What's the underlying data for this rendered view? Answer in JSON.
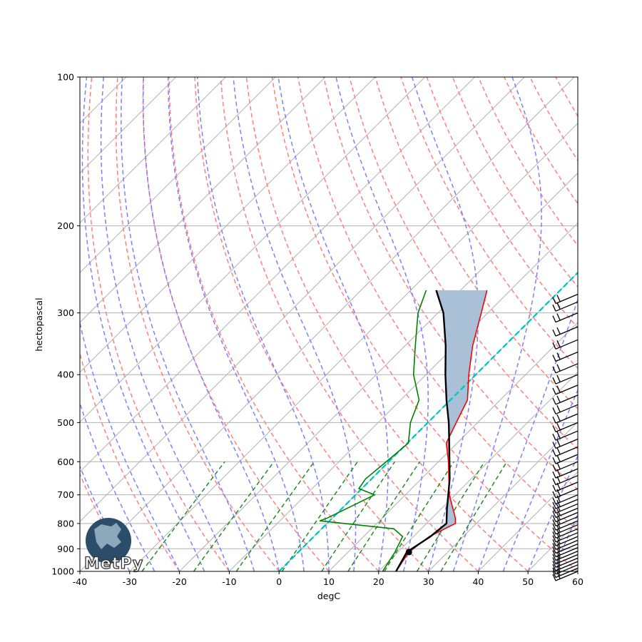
{
  "colors": {
    "temperature": "#ff0000",
    "dewpoint": "#008000",
    "parcel": "#000000",
    "cape": "#e8a2a6",
    "cin": "#a9c0d6",
    "dry_adiabat": "#ff7f7f",
    "moist_adiabat": "#7f7fff",
    "mixing_ratio": "#228b22",
    "zero_isotherm": "#00c0c0",
    "isotherm": "#b0b0b0",
    "grid": "#b0b0b0"
  },
  "logo": {
    "text": "MetPy",
    "icon": "globe-icon"
  },
  "chart_data": {
    "type": "line",
    "title": "",
    "xlabel": "degC",
    "ylabel": "hectopascal",
    "xlim": [
      -40,
      60
    ],
    "ylim": [
      1000,
      100
    ],
    "yscale": "log",
    "grid": true,
    "skew": "isotherms slant right (Skew-T log-P)",
    "x_ticks": [
      "-40",
      "-30",
      "-20",
      "-10",
      "0",
      "10",
      "20",
      "30",
      "40",
      "50",
      "60"
    ],
    "y_ticks": [
      "100",
      "200",
      "300",
      "400",
      "500",
      "600",
      "700",
      "800",
      "900",
      "1000"
    ],
    "series": [
      {
        "role": "temperature",
        "points": [
          [
            1000,
            23.5
          ],
          [
            914,
            22.2
          ],
          [
            900,
            22.4
          ],
          [
            850,
            23.2
          ],
          [
            800,
            25.8
          ],
          [
            780,
            24.7
          ],
          [
            700,
            18.8
          ],
          [
            600,
            12.0
          ],
          [
            550,
            7.8
          ],
          [
            500,
            5.7
          ],
          [
            450,
            3.4
          ],
          [
            400,
            -1.4
          ],
          [
            350,
            -6.4
          ],
          [
            300,
            -11.3
          ],
          [
            270,
            -14.7
          ]
        ]
      },
      {
        "role": "dewpoint",
        "points": [
          [
            1000,
            20.8
          ],
          [
            914,
            19.4
          ],
          [
            850,
            17.8
          ],
          [
            820,
            14.5
          ],
          [
            790,
            -2.0
          ],
          [
            780,
            -1.0
          ],
          [
            700,
            3.8
          ],
          [
            680,
            -0.6
          ],
          [
            650,
            -1.2
          ],
          [
            600,
            -0.5
          ],
          [
            550,
            0.2
          ],
          [
            500,
            -3.5
          ],
          [
            450,
            -6.3
          ],
          [
            400,
            -12.5
          ],
          [
            350,
            -17.9
          ],
          [
            300,
            -24.0
          ],
          [
            270,
            -26.9
          ]
        ]
      },
      {
        "role": "parcel",
        "points": [
          [
            1000,
            23.5
          ],
          [
            914,
            21.8
          ],
          [
            850,
            23.4
          ],
          [
            800,
            24.0
          ],
          [
            750,
            21.3
          ],
          [
            700,
            18.6
          ],
          [
            650,
            15.7
          ],
          [
            600,
            12.2
          ],
          [
            550,
            8.4
          ],
          [
            500,
            4.2
          ],
          [
            450,
            -0.8
          ],
          [
            400,
            -6.1
          ],
          [
            350,
            -11.8
          ],
          [
            300,
            -18.9
          ],
          [
            270,
            -24.9
          ]
        ]
      }
    ],
    "lcl": {
      "pressure": 914,
      "temperature": 22.2
    },
    "shaded": [
      "cape",
      "cin"
    ],
    "wind_barbs": {
      "x": 60,
      "pressures": [
        1000,
        985,
        970,
        955,
        940,
        925,
        910,
        895,
        880,
        865,
        850,
        835,
        820,
        805,
        790,
        775,
        760,
        745,
        730,
        715,
        700,
        680,
        660,
        640,
        620,
        600,
        580,
        560,
        540,
        520,
        500,
        480,
        460,
        440,
        420,
        400,
        380,
        360,
        340,
        320,
        300,
        285,
        275
      ]
    }
  }
}
